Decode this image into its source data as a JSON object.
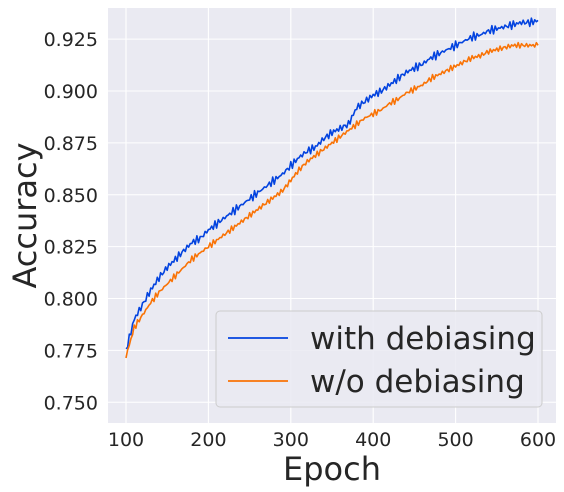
{
  "chart_data": {
    "type": "line",
    "title": "",
    "xlabel": "Epoch",
    "ylabel": "Accuracy",
    "xlim": [
      100,
      600
    ],
    "ylim": [
      0.74,
      0.94
    ],
    "xticks": [
      100,
      200,
      300,
      400,
      500,
      600
    ],
    "xtick_labels": [
      "100",
      "200",
      "300",
      "400",
      "500",
      "600"
    ],
    "yticks": [
      0.75,
      0.775,
      0.8,
      0.825,
      0.85,
      0.875,
      0.9,
      0.925
    ],
    "ytick_labels": [
      "0.750",
      "0.775",
      "0.800",
      "0.825",
      "0.850",
      "0.875",
      "0.900",
      "0.925"
    ],
    "grid": true,
    "legend_position": "lower-right",
    "background": "#eaeaf2",
    "series": [
      {
        "name": "with debiasing",
        "color": "#0343df",
        "x": [
          100,
          110,
          120,
          130,
          140,
          150,
          160,
          170,
          180,
          190,
          200,
          210,
          220,
          230,
          240,
          250,
          260,
          270,
          280,
          290,
          300,
          310,
          320,
          330,
          340,
          350,
          360,
          370,
          380,
          390,
          400,
          410,
          420,
          430,
          440,
          450,
          460,
          470,
          480,
          490,
          500,
          510,
          520,
          530,
          540,
          550,
          560,
          570,
          580,
          590,
          600
        ],
        "y": [
          0.775,
          0.79,
          0.797,
          0.804,
          0.81,
          0.815,
          0.819,
          0.823,
          0.827,
          0.829,
          0.833,
          0.836,
          0.839,
          0.842,
          0.845,
          0.848,
          0.851,
          0.854,
          0.857,
          0.86,
          0.864,
          0.868,
          0.871,
          0.873,
          0.877,
          0.88,
          0.882,
          0.884,
          0.892,
          0.895,
          0.898,
          0.9,
          0.903,
          0.906,
          0.909,
          0.911,
          0.913,
          0.916,
          0.918,
          0.92,
          0.922,
          0.924,
          0.926,
          0.927,
          0.929,
          0.93,
          0.931,
          0.932,
          0.933,
          0.933,
          0.934
        ]
      },
      {
        "name": "w/o debiasing",
        "color": "#f97306",
        "x": [
          100,
          110,
          120,
          130,
          140,
          150,
          160,
          170,
          180,
          190,
          200,
          210,
          220,
          230,
          240,
          250,
          260,
          270,
          280,
          290,
          300,
          310,
          320,
          330,
          340,
          350,
          360,
          370,
          380,
          390,
          400,
          410,
          420,
          430,
          440,
          450,
          460,
          470,
          480,
          490,
          500,
          510,
          520,
          530,
          540,
          550,
          560,
          570,
          580,
          590,
          600
        ],
        "y": [
          0.772,
          0.786,
          0.792,
          0.798,
          0.803,
          0.807,
          0.811,
          0.815,
          0.819,
          0.822,
          0.825,
          0.828,
          0.831,
          0.834,
          0.837,
          0.84,
          0.843,
          0.846,
          0.849,
          0.852,
          0.857,
          0.862,
          0.866,
          0.869,
          0.872,
          0.875,
          0.878,
          0.881,
          0.884,
          0.887,
          0.889,
          0.891,
          0.894,
          0.896,
          0.899,
          0.901,
          0.903,
          0.906,
          0.908,
          0.91,
          0.912,
          0.914,
          0.916,
          0.917,
          0.919,
          0.92,
          0.921,
          0.922,
          0.922,
          0.922,
          0.922
        ]
      }
    ]
  }
}
